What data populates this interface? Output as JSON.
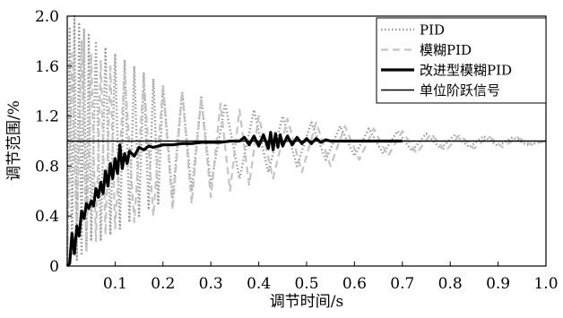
{
  "chart_data": {
    "type": "line",
    "xlabel": "调节时间/s",
    "ylabel": "调节范围/%",
    "xlim": [
      0,
      1.0
    ],
    "ylim": [
      0,
      2.0
    ],
    "x_ticks": [
      "0.1",
      "0.2",
      "0.3",
      "0.4",
      "0.5",
      "0.6",
      "0.7",
      "0.8",
      "0.9",
      "1.0"
    ],
    "y_ticks": [
      "0",
      "0.4",
      "0.8",
      "1.2",
      "1.6",
      "2.0"
    ],
    "grid": false,
    "legend_position": "top-right",
    "series": [
      {
        "name": "PID",
        "style": "dotted",
        "color": "#9a9a9a",
        "x": [
          0.0,
          0.005,
          0.01,
          0.015,
          0.02,
          0.025,
          0.03,
          0.035,
          0.04,
          0.045,
          0.05,
          0.06,
          0.07,
          0.08,
          0.09,
          0.1,
          0.11,
          0.12,
          0.13,
          0.14,
          0.15,
          0.16,
          0.17,
          0.18,
          0.19,
          0.2,
          0.22,
          0.24,
          0.26,
          0.28,
          0.3,
          0.33,
          0.36,
          0.39,
          0.42,
          0.45,
          0.48,
          0.51,
          0.54,
          0.57,
          0.6,
          0.63,
          0.66,
          0.69,
          0.72,
          0.75,
          0.78,
          0.81,
          0.84,
          0.87,
          0.9,
          0.93,
          0.96,
          1.0
        ],
        "y": [
          0,
          1.9,
          0.1,
          2.0,
          0.05,
          1.95,
          0.1,
          1.9,
          0.15,
          1.85,
          0.2,
          1.8,
          0.2,
          1.75,
          0.25,
          1.7,
          0.3,
          1.65,
          0.35,
          1.6,
          0.4,
          1.55,
          0.45,
          1.5,
          0.5,
          1.45,
          0.55,
          1.4,
          0.6,
          1.35,
          0.65,
          1.3,
          0.7,
          1.25,
          0.75,
          1.2,
          0.8,
          1.15,
          0.85,
          1.12,
          0.88,
          1.1,
          0.9,
          1.08,
          0.92,
          1.06,
          0.94,
          1.05,
          0.95,
          1.04,
          0.96,
          1.03,
          0.97,
          1.0
        ]
      },
      {
        "name": "模糊PID",
        "style": "dashed",
        "color": "#c4c4c4",
        "x": [
          0.0,
          0.01,
          0.02,
          0.03,
          0.04,
          0.05,
          0.06,
          0.07,
          0.08,
          0.09,
          0.1,
          0.12,
          0.14,
          0.16,
          0.18,
          0.2,
          0.22,
          0.24,
          0.26,
          0.28,
          0.3,
          0.32,
          0.34,
          0.36,
          0.38,
          0.4,
          0.43,
          0.46,
          0.49,
          0.52,
          0.55,
          0.58,
          0.61,
          0.64,
          0.67,
          0.7,
          0.73,
          0.76,
          0.79,
          0.82,
          0.85,
          0.88,
          0.91,
          0.94,
          0.97,
          1.0
        ],
        "y": [
          0,
          1.7,
          0.2,
          1.8,
          0.1,
          1.7,
          0.2,
          1.65,
          0.25,
          1.6,
          0.3,
          1.55,
          0.35,
          1.5,
          0.4,
          1.45,
          0.45,
          1.4,
          0.5,
          1.35,
          0.55,
          1.3,
          0.6,
          1.25,
          0.65,
          1.2,
          0.7,
          1.18,
          0.75,
          1.15,
          0.8,
          1.12,
          0.85,
          1.1,
          0.88,
          1.08,
          0.9,
          1.06,
          0.92,
          1.05,
          0.94,
          1.04,
          0.95,
          1.03,
          0.97,
          1.0
        ]
      },
      {
        "name": "改进型模糊PID",
        "style": "solid-thick",
        "color": "#000000",
        "x": [
          0.0,
          0.005,
          0.01,
          0.015,
          0.02,
          0.025,
          0.03,
          0.035,
          0.04,
          0.045,
          0.05,
          0.055,
          0.06,
          0.065,
          0.07,
          0.075,
          0.08,
          0.085,
          0.09,
          0.095,
          0.1,
          0.105,
          0.11,
          0.115,
          0.12,
          0.125,
          0.13,
          0.14,
          0.15,
          0.16,
          0.17,
          0.18,
          0.2,
          0.22,
          0.24,
          0.26,
          0.28,
          0.3,
          0.32,
          0.34,
          0.36,
          0.37,
          0.38,
          0.39,
          0.4,
          0.41,
          0.42,
          0.425,
          0.43,
          0.435,
          0.44,
          0.445,
          0.45,
          0.46,
          0.47,
          0.48,
          0.49,
          0.5,
          0.51,
          0.52,
          0.53,
          0.54,
          0.55,
          0.56,
          0.58,
          0.6,
          0.62,
          0.64,
          0.66,
          0.68,
          0.7
        ],
        "y": [
          0,
          0.02,
          0.26,
          0.1,
          0.32,
          0.24,
          0.44,
          0.38,
          0.5,
          0.46,
          0.52,
          0.48,
          0.62,
          0.55,
          0.67,
          0.58,
          0.76,
          0.64,
          0.82,
          0.7,
          0.86,
          0.74,
          0.97,
          0.78,
          0.9,
          0.82,
          0.92,
          0.88,
          0.95,
          0.93,
          0.96,
          0.95,
          0.97,
          0.97,
          0.98,
          0.98,
          0.99,
          0.99,
          0.99,
          1.0,
          1.0,
          1.03,
          0.97,
          1.04,
          0.96,
          1.05,
          0.94,
          1.07,
          0.93,
          1.06,
          0.95,
          1.05,
          0.96,
          1.04,
          0.97,
          1.03,
          0.98,
          1.02,
          0.98,
          1.02,
          0.99,
          1.01,
          1.0,
          1.0,
          1.0,
          1.0,
          1.0,
          1.0,
          1.0,
          1.0,
          1.0
        ]
      },
      {
        "name": "单位阶跃信号",
        "style": "solid",
        "color": "#000000",
        "x": [
          0.0,
          1.0
        ],
        "y": [
          1.0,
          1.0
        ]
      }
    ]
  }
}
